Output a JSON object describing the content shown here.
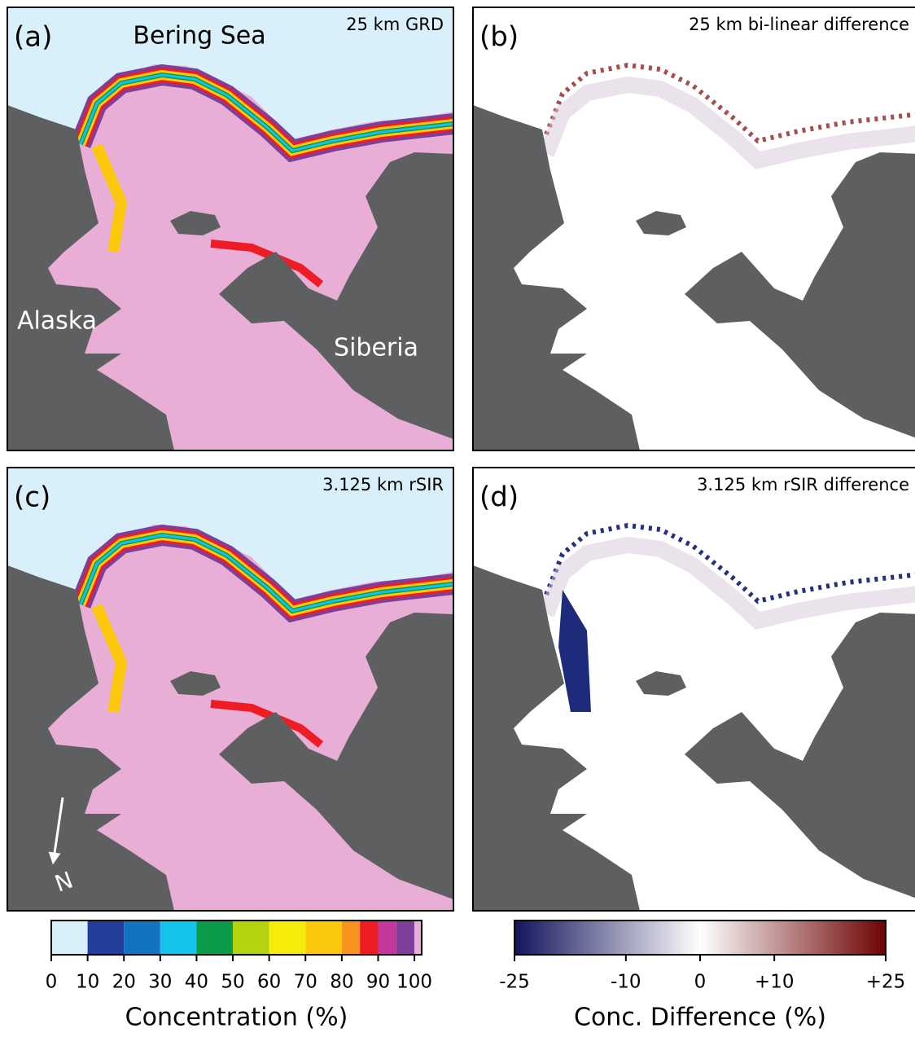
{
  "panels": [
    {
      "label": "(a)",
      "title": "25 km GRD",
      "places": [
        "Bering Sea",
        "Alaska",
        "Siberia"
      ]
    },
    {
      "label": "(b)",
      "title": "25 km bi-linear difference"
    },
    {
      "label": "(c)",
      "title": "3.125 km rSIR",
      "north": "N"
    },
    {
      "label": "(d)",
      "title": "3.125 km rSIR difference"
    }
  ],
  "colorbars": [
    {
      "title": "Concentration (%)",
      "range": [
        0,
        102
      ],
      "bounds": [
        0,
        10,
        20,
        30,
        40,
        50,
        60,
        70,
        80,
        85,
        90,
        95,
        100,
        102
      ],
      "colors": [
        "#d9eff9",
        "#233d9c",
        "#1273c0",
        "#13c3e9",
        "#0b9b4a",
        "#b5d30c",
        "#f5ec0c",
        "#fcc80b",
        "#f7941d",
        "#ee1c25",
        "#c2399b",
        "#7e3f98",
        "#e8aed6"
      ],
      "ticks": [
        0,
        10,
        20,
        30,
        40,
        50,
        60,
        70,
        80,
        90,
        100
      ]
    },
    {
      "title": "Conc. Difference (%)",
      "range": [
        -25,
        25
      ],
      "colors": [
        "#13145c",
        "#ffffff",
        "#6d0202"
      ],
      "ticks": [
        -25,
        -10,
        0,
        {
          "value": 10,
          "label": "+10"
        },
        {
          "value": 25,
          "label": "+25"
        }
      ]
    }
  ]
}
